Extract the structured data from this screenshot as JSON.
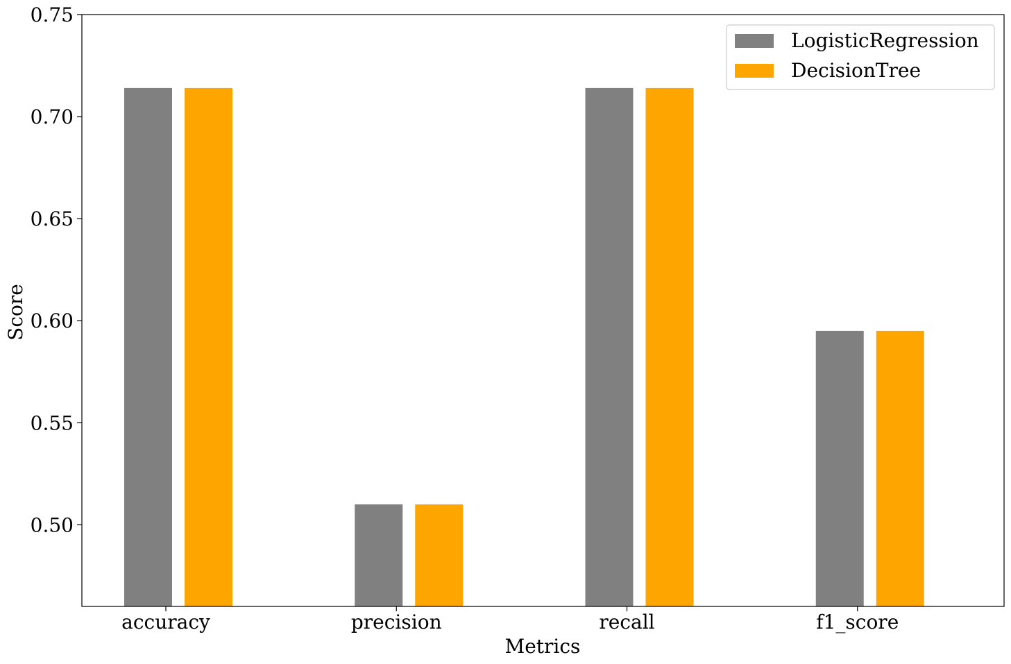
{
  "chart_data": {
    "type": "bar",
    "title": "",
    "xlabel": "Metrics",
    "ylabel": "Score",
    "categories": [
      "accuracy",
      "precision",
      "recall",
      "f1_score"
    ],
    "series": [
      {
        "name": "LogisticRegression",
        "color": "#808080",
        "values": [
          0.714,
          0.51,
          0.714,
          0.595
        ]
      },
      {
        "name": "DecisionTree",
        "color": "#FFA500",
        "values": [
          0.714,
          0.51,
          0.714,
          0.595
        ]
      }
    ],
    "ylim": [
      0.46,
      0.75
    ],
    "yticks": [
      "0.50",
      "0.55",
      "0.60",
      "0.65",
      "0.70",
      "0.75"
    ],
    "grid": false,
    "legend_position": "top-right"
  }
}
